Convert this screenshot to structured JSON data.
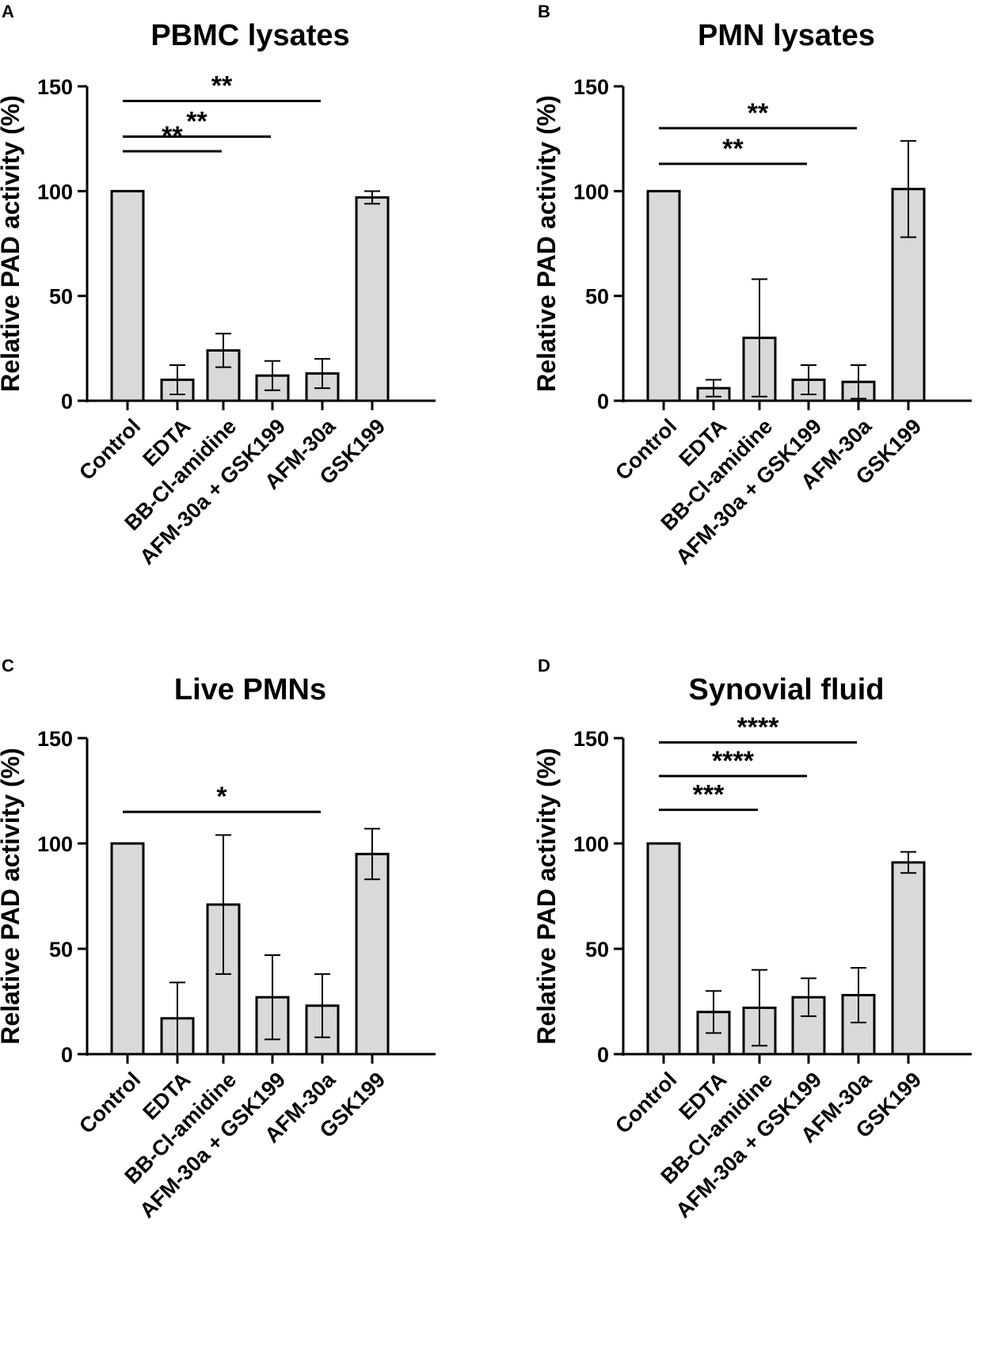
{
  "colors": {
    "bar_fill": "#d9d9d9",
    "stroke": "#000000"
  },
  "chart_data": [
    {
      "panel": "A",
      "type": "bar",
      "title": "PBMC lysates",
      "xlabel": "",
      "ylabel": "Relative PAD activity  (%)",
      "ylim": [
        0,
        150
      ],
      "yticks": [
        0,
        50,
        100,
        150
      ],
      "categories": [
        "Control",
        "EDTA",
        "BB-Cl-amidine",
        "AFM-30a + GSK199",
        "AFM-30a",
        "GSK199"
      ],
      "values": [
        100,
        10,
        24,
        12,
        13,
        97
      ],
      "errors": [
        0,
        7,
        8,
        7,
        7,
        3
      ],
      "significance": [
        {
          "from": 0,
          "to": 2,
          "y": 119,
          "label": "**"
        },
        {
          "from": 0,
          "to": 3,
          "y": 126,
          "label": "**"
        },
        {
          "from": 0,
          "to": 4,
          "y": 143,
          "label": "**"
        }
      ]
    },
    {
      "panel": "B",
      "type": "bar",
      "title": "PMN lysates",
      "xlabel": "",
      "ylabel": "Relative PAD activity  (%)",
      "ylim": [
        0,
        150
      ],
      "yticks": [
        0,
        50,
        100,
        150
      ],
      "categories": [
        "Control",
        "EDTA",
        "BB-Cl-amidine",
        "AFM-30a + GSK199",
        "AFM-30a",
        "GSK199"
      ],
      "values": [
        100,
        6,
        30,
        10,
        9,
        101
      ],
      "errors": [
        0,
        4,
        28,
        7,
        8,
        23
      ],
      "significance": [
        {
          "from": 0,
          "to": 3,
          "y": 113,
          "label": "**"
        },
        {
          "from": 0,
          "to": 4,
          "y": 130,
          "label": "**"
        }
      ]
    },
    {
      "panel": "C",
      "type": "bar",
      "title": "Live PMNs",
      "xlabel": "",
      "ylabel": "Relative PAD activity  (%)",
      "ylim": [
        0,
        150
      ],
      "yticks": [
        0,
        50,
        100,
        150
      ],
      "categories": [
        "Control",
        "EDTA",
        "BB-Cl-amidine",
        "AFM-30a + GSK199",
        "AFM-30a",
        "GSK199"
      ],
      "values": [
        100,
        17,
        71,
        27,
        23,
        95
      ],
      "errors": [
        0,
        17,
        33,
        20,
        15,
        12
      ],
      "significance": [
        {
          "from": 0,
          "to": 4,
          "y": 115,
          "label": "*"
        }
      ]
    },
    {
      "panel": "D",
      "type": "bar",
      "title": "Synovial fluid",
      "xlabel": "",
      "ylabel": "Relative PAD activity  (%)",
      "ylim": [
        0,
        150
      ],
      "yticks": [
        0,
        50,
        100,
        150
      ],
      "categories": [
        "Control",
        "EDTA",
        "BB-Cl-amidine",
        "AFM-30a + GSK199",
        "AFM-30a",
        "GSK199"
      ],
      "values": [
        100,
        20,
        22,
        27,
        28,
        91
      ],
      "errors": [
        0,
        10,
        18,
        9,
        13,
        5
      ],
      "significance": [
        {
          "from": 0,
          "to": 2,
          "y": 116,
          "label": "***"
        },
        {
          "from": 0,
          "to": 3,
          "y": 132,
          "label": "****"
        },
        {
          "from": 0,
          "to": 4,
          "y": 148,
          "label": "****"
        }
      ]
    }
  ]
}
